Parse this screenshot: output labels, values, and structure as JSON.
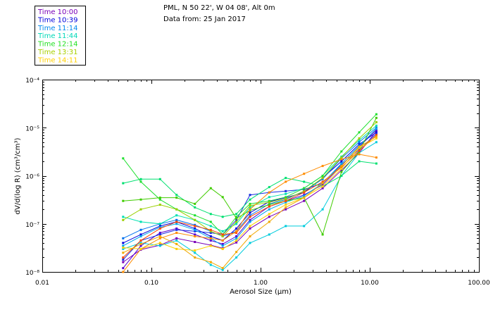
{
  "title": {
    "line1": "PML, N 50 22', W 04 08', Alt 0m",
    "line2": "Data from: 25 Jan 2017"
  },
  "chart_data": {
    "type": "line",
    "x_scale": "log",
    "y_scale": "log",
    "xlabel": "Aerosol Size (μm)",
    "ylabel": "dV/d(log R) (cm³/cm³)",
    "xlim": [
      0.01,
      100
    ],
    "ylim": [
      1e-08,
      0.0001
    ],
    "x_tick_labels": [
      "0.01",
      "0.10",
      "1.00",
      "10.00",
      "100.00"
    ],
    "y_tick_labels": [
      "10⁻⁸",
      "10⁻⁷",
      "10⁻⁶",
      "10⁻⁵",
      "10⁻⁴"
    ],
    "x": [
      0.055,
      0.08,
      0.12,
      0.17,
      0.25,
      0.35,
      0.45,
      0.6,
      0.8,
      1.2,
      1.7,
      2.5,
      3.7,
      5.5,
      8.0,
      11.5
    ],
    "series": [
      {
        "name": "Time 10:00",
        "color": "#7a00b8",
        "values": [
          1.6e-08,
          2.9e-08,
          3.6e-08,
          5e-08,
          4.2e-08,
          3.6e-08,
          3.1e-08,
          4.1e-08,
          8e-08,
          1.4e-07,
          2e-07,
          3e-07,
          5.5e-07,
          1.3e-06,
          3e-06,
          8.5e-06
        ]
      },
      {
        "name": "Time 10:00",
        "color": "#5a00d0",
        "values": [
          1.2e-08,
          3.5e-08,
          6.5e-08,
          8e-08,
          6e-08,
          4.5e-08,
          3.8e-08,
          5.5e-08,
          1.2e-07,
          2.3e-07,
          3e-07,
          4e-07,
          6.5e-07,
          1.6e-06,
          4e-06,
          9e-06
        ]
      },
      {
        "name": "Time 10:39",
        "color": "#0000dd",
        "values": [
          4e-08,
          6e-08,
          9e-08,
          1.1e-07,
          8e-08,
          5.5e-08,
          4.5e-08,
          8e-08,
          1.7e-07,
          2.9e-07,
          3.5e-07,
          4.5e-07,
          9e-07,
          2e-06,
          4.5e-06,
          8e-06
        ]
      },
      {
        "name": "Time 10:39",
        "color": "#1a2ee0",
        "values": [
          1.8e-08,
          4.5e-08,
          6e-08,
          7.5e-08,
          7e-08,
          6.5e-08,
          6e-08,
          1.2e-07,
          4e-07,
          4.5e-07,
          4.8e-07,
          5.2e-07,
          7e-07,
          1.7e-06,
          3.5e-06,
          7.5e-06
        ]
      },
      {
        "name": "Time 11:14",
        "color": "#0070ee",
        "values": [
          5e-08,
          7.5e-08,
          1e-07,
          1.2e-07,
          9.5e-08,
          7e-08,
          5.5e-08,
          7e-08,
          1.5e-07,
          2.6e-07,
          3.2e-07,
          4.8e-07,
          8.5e-07,
          2.3e-06,
          5e-06,
          1e-05
        ]
      },
      {
        "name": "Time 11:14",
        "color": "#00a8ee",
        "values": [
          3.5e-08,
          5.5e-08,
          8.5e-08,
          1e-07,
          7.5e-08,
          5e-08,
          3.5e-08,
          5e-08,
          1.1e-07,
          2e-07,
          2.8e-07,
          3.8e-07,
          7e-07,
          1.8e-06,
          4.2e-06,
          9.5e-06
        ]
      },
      {
        "name": "Time 11:44",
        "color": "#00ccdd",
        "values": [
          3e-08,
          4e-08,
          3.5e-08,
          4.5e-08,
          2.5e-08,
          1.4e-08,
          1.1e-08,
          2e-08,
          4e-08,
          6e-08,
          9e-08,
          9e-08,
          2e-07,
          1e-06,
          3e-06,
          5e-06
        ]
      },
      {
        "name": "Time 11:44",
        "color": "#00e0b0",
        "values": [
          1.4e-07,
          1.1e-07,
          1e-07,
          1.5e-07,
          1.2e-07,
          9e-08,
          7e-08,
          1e-07,
          2.2e-07,
          3.6e-07,
          4.2e-07,
          5.5e-07,
          1e-06,
          2.5e-06,
          5.5e-06,
          1.1e-05
        ]
      },
      {
        "name": "Time 12:14",
        "color": "#00e070",
        "values": [
          7e-07,
          8.5e-07,
          8.5e-07,
          4e-07,
          2.2e-07,
          1.6e-07,
          1.4e-07,
          1.6e-07,
          3.2e-07,
          5.8e-07,
          9e-07,
          7.5e-07,
          6e-07,
          1e-06,
          2e-06,
          1.8e-06
        ]
      },
      {
        "name": "Time 12:14",
        "color": "#20e030",
        "values": [
          2.3e-06,
          7.5e-07,
          3.2e-07,
          2e-07,
          1.5e-07,
          1.1e-07,
          6e-08,
          1.4e-07,
          2.6e-07,
          3e-07,
          3.6e-07,
          5.5e-07,
          1e-06,
          3.2e-06,
          8e-06,
          1.9e-05
        ]
      },
      {
        "name": "Time 13:31",
        "color": "#40cc00",
        "values": [
          3e-07,
          3.2e-07,
          3.5e-07,
          3.5e-07,
          2.6e-07,
          5.5e-07,
          3.6e-07,
          1.3e-07,
          1.9e-07,
          2.5e-07,
          3e-07,
          3.5e-07,
          6e-08,
          1.2e-06,
          3.2e-06,
          1.6e-05
        ]
      },
      {
        "name": "Time 13:31",
        "color": "#9ad000",
        "values": [
          1.2e-07,
          2e-07,
          2.5e-07,
          2e-07,
          1.2e-07,
          7e-08,
          5.5e-08,
          1.1e-07,
          2.4e-07,
          2.8e-07,
          3.3e-07,
          4.8e-07,
          9e-07,
          2.4e-06,
          6e-06,
          1.3e-05
        ]
      },
      {
        "name": "Time 14:11",
        "color": "#ff4800",
        "values": [
          2e-08,
          4.5e-08,
          8e-08,
          1.1e-07,
          9e-08,
          7.5e-08,
          6e-08,
          6.5e-08,
          1.4e-07,
          2.3e-07,
          3e-07,
          4.5e-07,
          7.5e-07,
          1.5e-06,
          3.3e-06,
          7e-06
        ]
      },
      {
        "name": "Time 14:11",
        "color": "#ff8c00",
        "values": [
          1e-08,
          3e-08,
          5e-08,
          6.5e-08,
          5.5e-08,
          5e-08,
          4.5e-08,
          7e-08,
          2e-07,
          4.5e-07,
          7.5e-07,
          1.1e-06,
          1.6e-06,
          2.2e-06,
          2.8e-06,
          2.4e-06
        ]
      },
      {
        "name": "Time 14:11",
        "color": "#ffd000",
        "values": [
          3.2e-08,
          3e-08,
          4e-08,
          3e-08,
          2.8e-08,
          3.5e-08,
          3e-08,
          4.5e-08,
          9e-08,
          1.6e-07,
          2.5e-07,
          3.5e-07,
          6e-07,
          1.4e-06,
          3.8e-06,
          6e-06
        ]
      },
      {
        "name": "Time 14:11",
        "color": "#f0a800",
        "values": [
          2.5e-08,
          3.8e-08,
          5.5e-08,
          3.8e-08,
          2e-08,
          1.6e-08,
          1.2e-08,
          2.6e-08,
          5.5e-08,
          1.1e-07,
          2.2e-07,
          3.5e-07,
          7e-07,
          1.6e-06,
          4e-06,
          6.5e-06
        ]
      }
    ],
    "legend": {
      "position": "top-left",
      "entries": [
        {
          "label": "Time 10:00",
          "color": "#7a00b8"
        },
        {
          "label": "Time 10:39",
          "color": "#0000dd"
        },
        {
          "label": "Time 11:14",
          "color": "#0088ee"
        },
        {
          "label": "Time 11:44",
          "color": "#00d8b8"
        },
        {
          "label": "Time 12:14",
          "color": "#20e020"
        },
        {
          "label": "Time 13:31",
          "color": "#a8d000"
        },
        {
          "label": "Time 14:11",
          "color": "#ffd000"
        }
      ]
    }
  }
}
